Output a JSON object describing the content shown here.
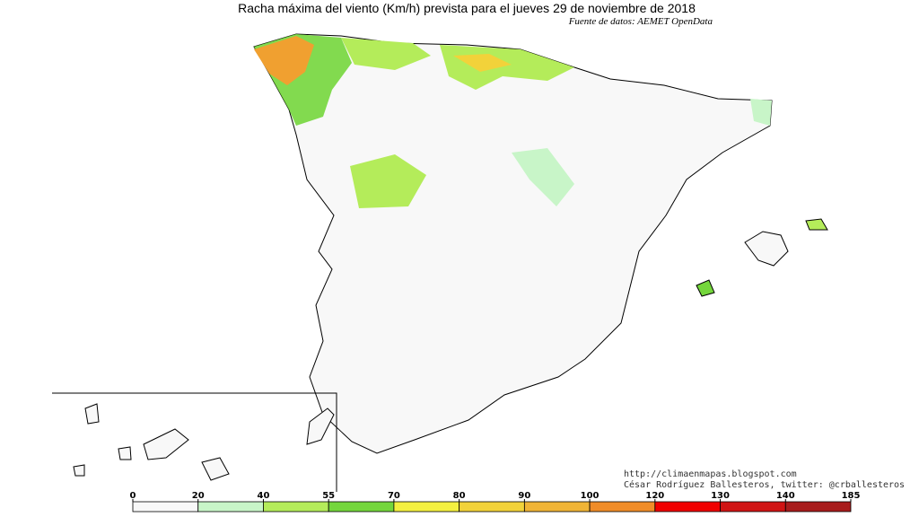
{
  "title": "Racha máxima del viento (Km/h) prevista para el jueves 29 de noviembre de 2018",
  "source": "Fuente de datos: AEMET OpenData",
  "credits": [
    "http://climaenmapas.blogspot.com",
    "César Rodríguez Ballesteros, twitter: @crballesteros"
  ],
  "legend": {
    "ticks": [
      0,
      20,
      40,
      55,
      70,
      80,
      90,
      100,
      120,
      130,
      140,
      185
    ],
    "colors": [
      "#f8f8f8",
      "#c8f5c8",
      "#b4ec5a",
      "#74d63c",
      "#f4f040",
      "#f2d23a",
      "#f0b436",
      "#f08c28",
      "#f00000",
      "#d01414",
      "#a81c1c"
    ]
  }
}
